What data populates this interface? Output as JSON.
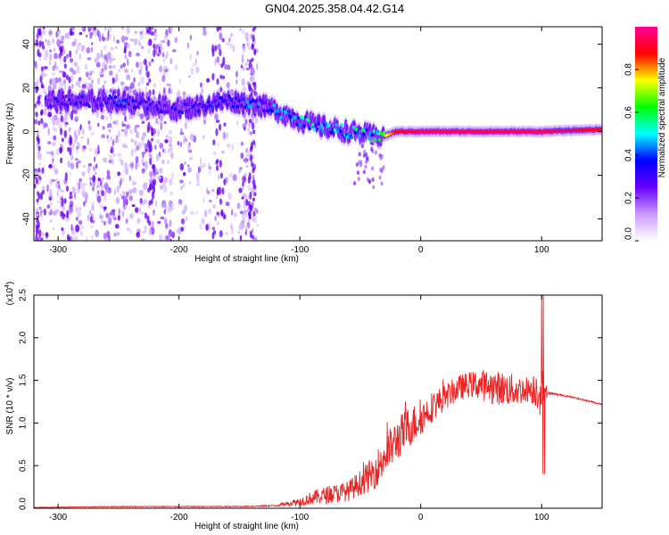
{
  "title": "GN04.2025.358.04.42.G14",
  "chart_data": [
    {
      "type": "heatmap",
      "title": "",
      "xlabel": "Height of straight line (km)",
      "ylabel": "Frequency (Hz)",
      "xlim": [
        -320,
        150
      ],
      "ylim": [
        -50,
        48
      ],
      "xticks": [
        -300,
        -200,
        -100,
        0,
        100
      ],
      "yticks": [
        -40,
        -20,
        0,
        20,
        40
      ],
      "colorbar": {
        "label": "Normalized spectral amplitude",
        "ticks": [
          "0.0",
          "0.2",
          "0.4",
          "0.6",
          "0.8"
        ],
        "range": [
          0,
          1
        ],
        "colormap": [
          "#ffffff",
          "#cc99ff",
          "#6600ff",
          "#0000ff",
          "#00ffff",
          "#00ff00",
          "#ffff00",
          "#ff0000",
          "#ff0099"
        ]
      },
      "ridge": {
        "x": [
          -310,
          -280,
          -250,
          -220,
          -200,
          -180,
          -160,
          -140,
          -120,
          -100,
          -80,
          -60,
          -40,
          -30,
          -20,
          0,
          50,
          100,
          150
        ],
        "y": [
          14,
          14,
          14,
          12,
          10,
          12,
          14,
          13,
          10,
          5,
          2,
          0,
          -2,
          -2,
          0,
          0,
          0,
          0,
          1
        ],
        "amplitude": [
          0.3,
          0.3,
          0.35,
          0.3,
          0.3,
          0.35,
          0.35,
          0.4,
          0.45,
          0.5,
          0.5,
          0.5,
          0.5,
          0.7,
          0.9,
          0.95,
          0.95,
          0.95,
          0.9
        ]
      }
    },
    {
      "type": "line",
      "title": "",
      "xlabel": "Height of straight line (km)",
      "ylabel": "SNR (10 * v/v)",
      "y_multiplier": "(x10",
      "y_multiplier_exp": "4",
      "y_multiplier_close": ")",
      "xlim": [
        -320,
        150
      ],
      "ylim": [
        0,
        2.5
      ],
      "xticks": [
        -300,
        -200,
        -100,
        0,
        100
      ],
      "yticks": [
        "0.0",
        "0.5",
        "1.0",
        "1.5",
        "2.0",
        "2.5"
      ],
      "series": [
        {
          "color": "#ee2222",
          "x": [
            -320,
            -250,
            -200,
            -150,
            -120,
            -100,
            -90,
            -80,
            -60,
            -50,
            -40,
            -30,
            -20,
            -10,
            0,
            10,
            20,
            30,
            40,
            50,
            60,
            70,
            80,
            90,
            100,
            105,
            120,
            150
          ],
          "y": [
            0.01,
            0.02,
            0.02,
            0.02,
            0.03,
            0.08,
            0.12,
            0.15,
            0.2,
            0.3,
            0.4,
            0.6,
            0.8,
            0.95,
            1.05,
            1.2,
            1.3,
            1.4,
            1.45,
            1.45,
            1.42,
            1.4,
            1.38,
            1.4,
            1.4,
            1.35,
            1.32,
            1.22
          ],
          "noise": [
            0.002,
            0.005,
            0.005,
            0.006,
            0.01,
            0.05,
            0.08,
            0.1,
            0.12,
            0.15,
            0.2,
            0.25,
            0.25,
            0.25,
            0.2,
            0.18,
            0.15,
            0.15,
            0.15,
            0.18,
            0.2,
            0.2,
            0.18,
            0.15,
            0.3,
            0.02,
            0.01,
            0.01
          ]
        }
      ]
    }
  ]
}
